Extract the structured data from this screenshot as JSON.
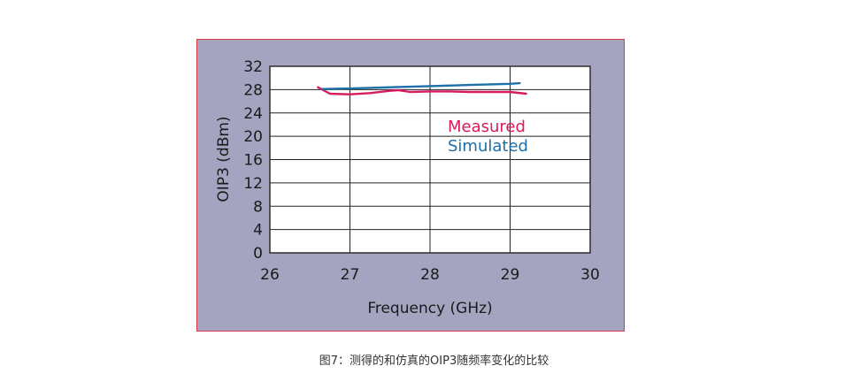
{
  "caption": "图7：测得的和仿真的OIP3随频率变化的比较",
  "chart_data": {
    "type": "line",
    "xlabel": "Frequency (GHz)",
    "ylabel": "OIP3 (dBm)",
    "xlim": [
      26,
      30
    ],
    "ylim": [
      0,
      32
    ],
    "xticks": [
      26,
      27,
      28,
      29,
      30
    ],
    "yticks": [
      0,
      4,
      8,
      12,
      16,
      20,
      24,
      28,
      32
    ],
    "grid": true,
    "legend_position": "upper-right",
    "series": [
      {
        "name": "Measured",
        "color": "#d81b60",
        "x": [
          26.6,
          26.75,
          27.0,
          27.25,
          27.5,
          27.6,
          27.75,
          28.0,
          28.25,
          28.5,
          28.75,
          29.0,
          29.2
        ],
        "y": [
          28.4,
          27.3,
          27.2,
          27.4,
          27.8,
          27.9,
          27.6,
          27.7,
          27.7,
          27.6,
          27.6,
          27.6,
          27.3
        ]
      },
      {
        "name": "Simulated",
        "color": "#1f6fa8",
        "x": [
          26.65,
          27.0,
          27.5,
          28.0,
          28.5,
          29.0,
          29.12
        ],
        "y": [
          28.1,
          28.2,
          28.4,
          28.6,
          28.8,
          29.0,
          29.1
        ]
      }
    ],
    "background_color": "#a4a4c1",
    "frame_color": "#d93a4a"
  }
}
